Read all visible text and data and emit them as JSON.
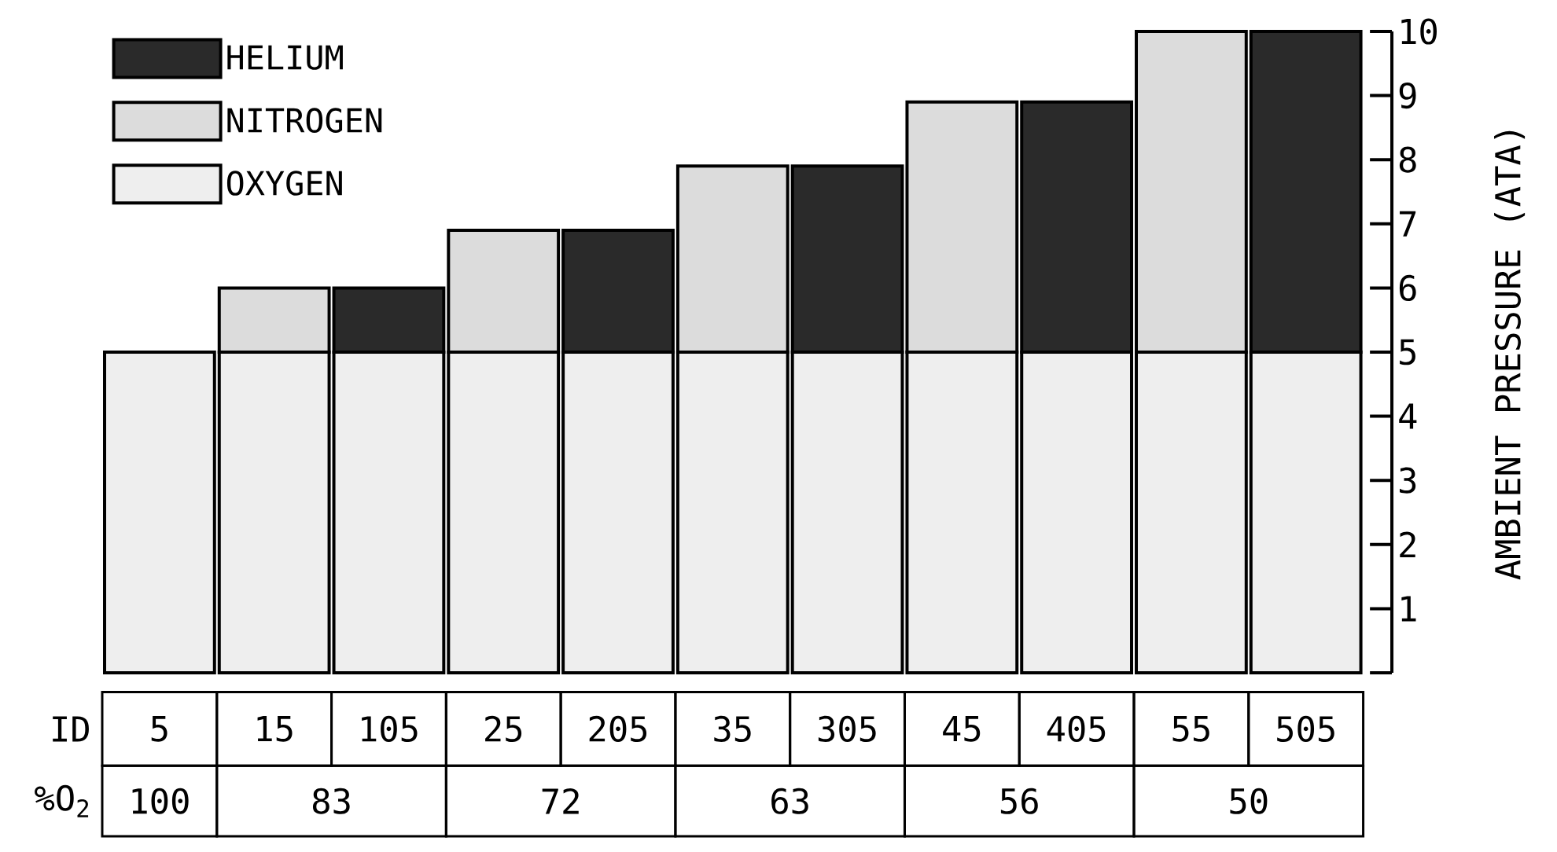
{
  "chart_data": {
    "type": "bar",
    "stacked": true,
    "ylabel": "AMBIENT PRESSURE (ATA)",
    "xlabel": "ID",
    "categories": [
      "5",
      "15",
      "105",
      "25",
      "205",
      "35",
      "305",
      "45",
      "405",
      "55",
      "505"
    ],
    "series": [
      {
        "name": "OXYGEN",
        "color": "#eeeeee",
        "values": [
          5,
          5,
          5,
          5,
          5,
          5,
          5,
          5,
          5,
          5,
          5
        ]
      },
      {
        "name": "NITROGEN",
        "color": "#dcdcdc",
        "values": [
          null,
          1.0,
          null,
          1.9,
          null,
          2.9,
          null,
          3.9,
          null,
          5.0,
          null
        ]
      },
      {
        "name": "HELIUM",
        "color": "#2a2a2a",
        "values": [
          null,
          null,
          1.0,
          null,
          1.9,
          null,
          2.9,
          null,
          3.9,
          null,
          5.0
        ]
      }
    ],
    "ylim": [
      0,
      10
    ],
    "yticks": [
      {
        "value": 0,
        "label": null
      },
      1,
      2,
      3,
      4,
      5,
      6,
      7,
      8,
      9,
      10
    ],
    "legend": "top left",
    "grid": false,
    "annotations": [
      "%O$_{2}$",
      "100",
      "83",
      "72",
      "63",
      "56",
      "50"
    ]
  }
}
